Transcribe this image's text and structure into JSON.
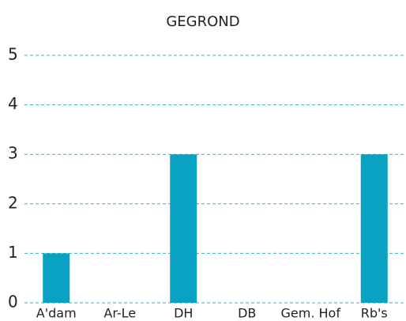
{
  "chart_data": {
    "type": "bar",
    "title": "GEGROND",
    "categories": [
      "A'dam",
      "Ar-Le",
      "DH",
      "DB",
      "Gem. Hof",
      "Rb's"
    ],
    "values": [
      1,
      0,
      3,
      0,
      0,
      3
    ],
    "color": "#0aa2c2",
    "ylim": [
      0,
      5
    ],
    "yticks": [
      0,
      1,
      2,
      3,
      4,
      5
    ],
    "grid": true
  }
}
